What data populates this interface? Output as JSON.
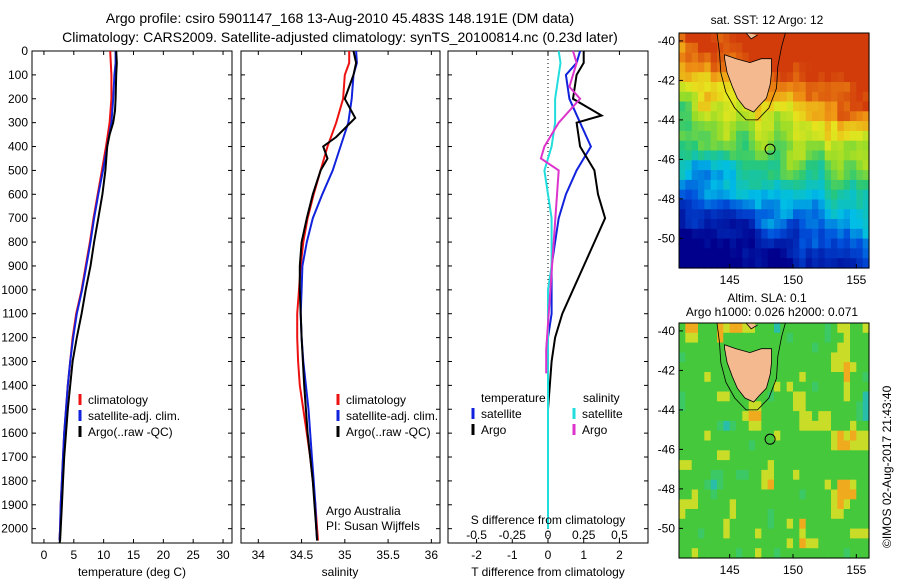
{
  "title": {
    "line1": "Argo profile: csiro 5901147_168 13-Aug-2010 45.483S 148.191E (DM data)",
    "line2": "Climatology: CARS2009. Satellite-adjusted climatology: synTS_20100814.nc (0.23d later)"
  },
  "credit": "©IMOS 02-Aug-2017 21:43:40",
  "colors": {
    "red": "#ee1111",
    "blue": "#1122dd",
    "black": "#000000",
    "cyan": "#22dddd",
    "magenta": "#dd33cc"
  },
  "chart_data": [
    {
      "type": "line",
      "name": "temperature-profile",
      "xlabel": "temperature (deg C)",
      "ylabel": "",
      "xlim": [
        -2,
        31.5
      ],
      "ylim": [
        2060,
        0
      ],
      "xticks": [
        0,
        5,
        10,
        15,
        20,
        25,
        30
      ],
      "yticks": [
        0,
        100,
        200,
        300,
        400,
        500,
        600,
        700,
        800,
        900,
        1000,
        1100,
        1200,
        1300,
        1400,
        1500,
        1600,
        1700,
        1800,
        1900,
        2000
      ],
      "legend_position": "lower-middle",
      "legend": [
        "climatology",
        "satellite-adj. clim.",
        "Argo(..raw -QC)"
      ],
      "series": [
        {
          "name": "climatology",
          "color": "red",
          "x": [
            11.1,
            11.2,
            11.3,
            11.3,
            11.0,
            10.4,
            9.7,
            9.0,
            8.3,
            7.7,
            7.0,
            6.3,
            5.4,
            4.8,
            4.4,
            4.0,
            3.7,
            3.4,
            3.2,
            3.0,
            2.8,
            2.7,
            2.6
          ],
          "y": [
            0,
            50,
            100,
            200,
            300,
            400,
            500,
            600,
            700,
            800,
            900,
            1000,
            1100,
            1200,
            1300,
            1400,
            1500,
            1600,
            1700,
            1800,
            1900,
            2000,
            2050
          ]
        },
        {
          "name": "satellite-adj. clim.",
          "color": "blue",
          "x": [
            12.0,
            12.0,
            11.8,
            11.6,
            11.3,
            10.6,
            9.9,
            9.1,
            8.4,
            7.8,
            7.1,
            6.4,
            5.5,
            4.9,
            4.4,
            4.0,
            3.7,
            3.4,
            3.2,
            3.0,
            2.8,
            2.7,
            2.6
          ],
          "y": [
            0,
            50,
            100,
            200,
            300,
            400,
            500,
            600,
            700,
            800,
            900,
            1000,
            1100,
            1200,
            1300,
            1400,
            1500,
            1600,
            1700,
            1800,
            1900,
            2000,
            2050
          ]
        },
        {
          "name": "Argo(..raw -QC)",
          "color": "black",
          "x": [
            12.1,
            12.2,
            12.1,
            12.0,
            11.9,
            11.6,
            11.0,
            10.6,
            10.3,
            9.8,
            9.1,
            8.4,
            7.8,
            7.0,
            6.3,
            5.5,
            4.8,
            4.4,
            4.0,
            3.7,
            3.4,
            3.2,
            3.0,
            2.8,
            2.7,
            2.6
          ],
          "y": [
            0,
            50,
            100,
            200,
            250,
            300,
            350,
            400,
            500,
            600,
            700,
            800,
            900,
            1000,
            1100,
            1200,
            1300,
            1400,
            1500,
            1600,
            1700,
            1800,
            1900,
            2000,
            2050,
            2060
          ]
        }
      ]
    },
    {
      "type": "line",
      "name": "salinity-profile",
      "xlabel": "salinity",
      "ylabel": "",
      "xlim": [
        33.8,
        36.1
      ],
      "ylim": [
        2060,
        0
      ],
      "xticks": [
        34,
        34.5,
        35,
        35.5,
        36
      ],
      "legend_position": "lower-right",
      "legend": [
        "climatology",
        "satellite-adj. clim.",
        "Argo(..raw -QC)"
      ],
      "annotation": {
        "line1": "Argo Australia",
        "line2": "PI: Susan Wijffels"
      },
      "series": [
        {
          "name": "climatology",
          "color": "red",
          "x": [
            35.05,
            35.05,
            35.0,
            34.98,
            34.9,
            34.8,
            34.72,
            34.64,
            34.57,
            34.52,
            34.49,
            34.47,
            34.45,
            34.45,
            34.46,
            34.48,
            34.52,
            34.56,
            34.6,
            34.63,
            34.66,
            34.68,
            34.69
          ],
          "y": [
            0,
            50,
            100,
            200,
            300,
            400,
            500,
            600,
            700,
            800,
            900,
            1000,
            1100,
            1200,
            1300,
            1400,
            1500,
            1600,
            1700,
            1800,
            1900,
            2000,
            2050
          ]
        },
        {
          "name": "satellite-adj. clim.",
          "color": "blue",
          "x": [
            35.13,
            35.14,
            35.1,
            35.08,
            35.04,
            34.95,
            34.86,
            34.74,
            34.63,
            34.56,
            34.51,
            34.5,
            34.49,
            34.5,
            34.52,
            34.55,
            34.58,
            34.6,
            34.62,
            34.64,
            34.66,
            34.67,
            34.68
          ],
          "y": [
            0,
            50,
            100,
            200,
            300,
            400,
            500,
            600,
            700,
            800,
            900,
            1000,
            1100,
            1200,
            1300,
            1400,
            1500,
            1600,
            1700,
            1800,
            1900,
            2000,
            2050
          ]
        },
        {
          "name": "Argo(..raw -QC)",
          "color": "black",
          "x": [
            35.1,
            35.13,
            35.1,
            35.0,
            35.12,
            34.9,
            34.75,
            34.8,
            34.72,
            34.63,
            34.56,
            34.5,
            34.48,
            34.48,
            34.49,
            34.5,
            34.53,
            34.57,
            34.6,
            34.63,
            34.65,
            34.67,
            34.68
          ],
          "y": [
            0,
            50,
            100,
            200,
            280,
            360,
            400,
            450,
            500,
            600,
            700,
            800,
            900,
            1000,
            1100,
            1200,
            1400,
            1600,
            1700,
            1800,
            1900,
            2000,
            2050
          ]
        }
      ]
    },
    {
      "type": "line",
      "name": "difference-profile",
      "xlabel": "T difference from climatology",
      "xlabel_top": "S difference from climatology",
      "xlim": [
        -2.8,
        2.8
      ],
      "xticks_T": [
        -2,
        -1,
        0,
        1,
        2
      ],
      "xticks_S_labels": [
        "-0.5",
        "-0.25",
        "0",
        "0.25",
        "0.5"
      ],
      "xticks_S_at_T": [
        -2,
        -1,
        0,
        1,
        2
      ],
      "ylim": [
        2060,
        0
      ],
      "legend_headers": [
        "temperature",
        "salinity"
      ],
      "legend": [
        "satellite",
        "Argo",
        "satellite",
        "Argo"
      ],
      "series": [
        {
          "name": "temperature satellite",
          "color": "blue",
          "x": [
            0.9,
            0.8,
            0.5,
            0.6,
            0.9,
            1.2,
            0.8,
            0.5,
            0.3,
            0.2,
            0.1,
            0.1,
            0.1,
            0.0,
            0.0,
            0.0,
            0.0,
            0.0,
            0.0,
            0.0,
            0.0,
            0.0
          ],
          "y": [
            0,
            50,
            100,
            200,
            300,
            400,
            500,
            600,
            700,
            800,
            900,
            1000,
            1100,
            1200,
            1300,
            1400,
            1500,
            1600,
            1700,
            1800,
            1900,
            2000
          ]
        },
        {
          "name": "temperature Argo",
          "color": "black",
          "x": [
            1.0,
            1.0,
            0.8,
            0.7,
            1.5,
            0.8,
            0.9,
            1.3,
            1.4,
            1.6,
            1.3,
            1.0,
            0.7,
            0.4,
            0.2,
            0.1,
            0.05,
            0.0,
            0.0,
            0.0,
            0.0,
            0.0,
            0.0
          ],
          "y": [
            0,
            50,
            100,
            200,
            270,
            300,
            400,
            500,
            600,
            700,
            800,
            900,
            1000,
            1100,
            1200,
            1300,
            1400,
            1500,
            1600,
            1700,
            1800,
            1900,
            2000
          ]
        },
        {
          "name": "salinity satellite",
          "color": "cyan",
          "x": [
            0.3,
            0.35,
            0.3,
            0.2,
            0.2,
            0.1,
            -0.1,
            0.0,
            0.1,
            0.1,
            0.1,
            0.0,
            0.0,
            0.0,
            0.0,
            0.0,
            0.0,
            0.0,
            0.0,
            0.0,
            0.0
          ],
          "y": [
            0,
            50,
            100,
            200,
            300,
            400,
            500,
            600,
            700,
            800,
            900,
            1000,
            1200,
            1300,
            1400,
            1500,
            1600,
            1700,
            1800,
            1900,
            2000
          ]
        },
        {
          "name": "salinity Argo",
          "color": "magenta",
          "x": [
            0.7,
            0.8,
            0.6,
            0.9,
            0.3,
            -0.1,
            -0.2,
            0.3,
            -0.05,
            -0.05
          ],
          "y": [
            0,
            50,
            150,
            200,
            300,
            400,
            450,
            500,
            1250,
            1350
          ]
        }
      ]
    },
    {
      "type": "heatmap",
      "name": "sst-map",
      "title": "sat. SST: 12  Argo: 12",
      "xlim": [
        141,
        156
      ],
      "ylim": [
        -51.5,
        -39.6
      ],
      "xticks": [
        145,
        150,
        155
      ],
      "yticks": [
        -40,
        -42,
        -44,
        -46,
        -48,
        -50
      ],
      "marker": {
        "lon": 148.191,
        "lat": -45.483
      }
    },
    {
      "type": "heatmap",
      "name": "sla-map",
      "title_line1": "Altim. SLA: 0.1",
      "title_line2": "Argo h1000: 0.026 h2000: 0.071",
      "xlim": [
        141,
        156
      ],
      "ylim": [
        -51.5,
        -39.6
      ],
      "xticks": [
        145,
        150,
        155
      ],
      "yticks": [
        -40,
        -42,
        -44,
        -46,
        -48,
        -50
      ],
      "marker": {
        "lon": 148.191,
        "lat": -45.483
      }
    }
  ]
}
